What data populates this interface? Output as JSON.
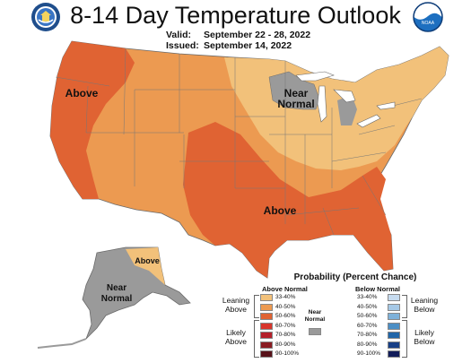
{
  "header": {
    "title": "8-14 Day Temperature Outlook",
    "valid_label": "Valid:",
    "valid_value": "September 22 - 28, 2022",
    "issued_label": "Issued:",
    "issued_value": "September 14, 2022"
  },
  "logos": [
    {
      "name": "doc-seal-icon",
      "caption": ""
    },
    {
      "name": "noaa-logo-icon",
      "caption": "NOAA"
    }
  ],
  "map": {
    "labels": {
      "west": "Above",
      "midwest_line1": "Near",
      "midwest_line2": "Normal",
      "south": "Above",
      "alaska_north": "Above",
      "alaska_line1": "Near",
      "alaska_line2": "Normal"
    }
  },
  "legend": {
    "title": "Probability (Percent Chance)",
    "above_head": "Above Normal",
    "below_head": "Below Normal",
    "near_line1": "Near",
    "near_line2": "Normal",
    "leaning_above_1": "Leaning",
    "leaning_above_2": "Above",
    "likely_above_1": "Likely",
    "likely_above_2": "Above",
    "leaning_below_1": "Leaning",
    "leaning_below_2": "Below",
    "likely_below_1": "Likely",
    "likely_below_2": "Below",
    "above": [
      {
        "label": "33-40%",
        "color": "#f2c17a"
      },
      {
        "label": "40-50%",
        "color": "#ec9a51"
      },
      {
        "label": "50-60%",
        "color": "#e06333"
      },
      {
        "label": "60-70%",
        "color": "#d8352c"
      },
      {
        "label": "70-80%",
        "color": "#b4202a"
      },
      {
        "label": "80-90%",
        "color": "#8a1c22"
      },
      {
        "label": "90-100%",
        "color": "#58121a"
      }
    ],
    "near_color": "#9a9a9a",
    "below": [
      {
        "label": "33-40%",
        "color": "#c6dbef"
      },
      {
        "label": "40-50%",
        "color": "#a5c8e6"
      },
      {
        "label": "50-60%",
        "color": "#7eb1d9"
      },
      {
        "label": "60-70%",
        "color": "#4c8fc5"
      },
      {
        "label": "70-80%",
        "color": "#2166a9"
      },
      {
        "label": "80-90%",
        "color": "#173f86"
      },
      {
        "label": "90-100%",
        "color": "#121d5a"
      }
    ]
  },
  "colors": {
    "above_33_40": "#f2c17a",
    "above_40_50": "#ec9a51",
    "above_50_60": "#e06333",
    "near_normal": "#9a9a9a",
    "water": "#ffffff"
  }
}
